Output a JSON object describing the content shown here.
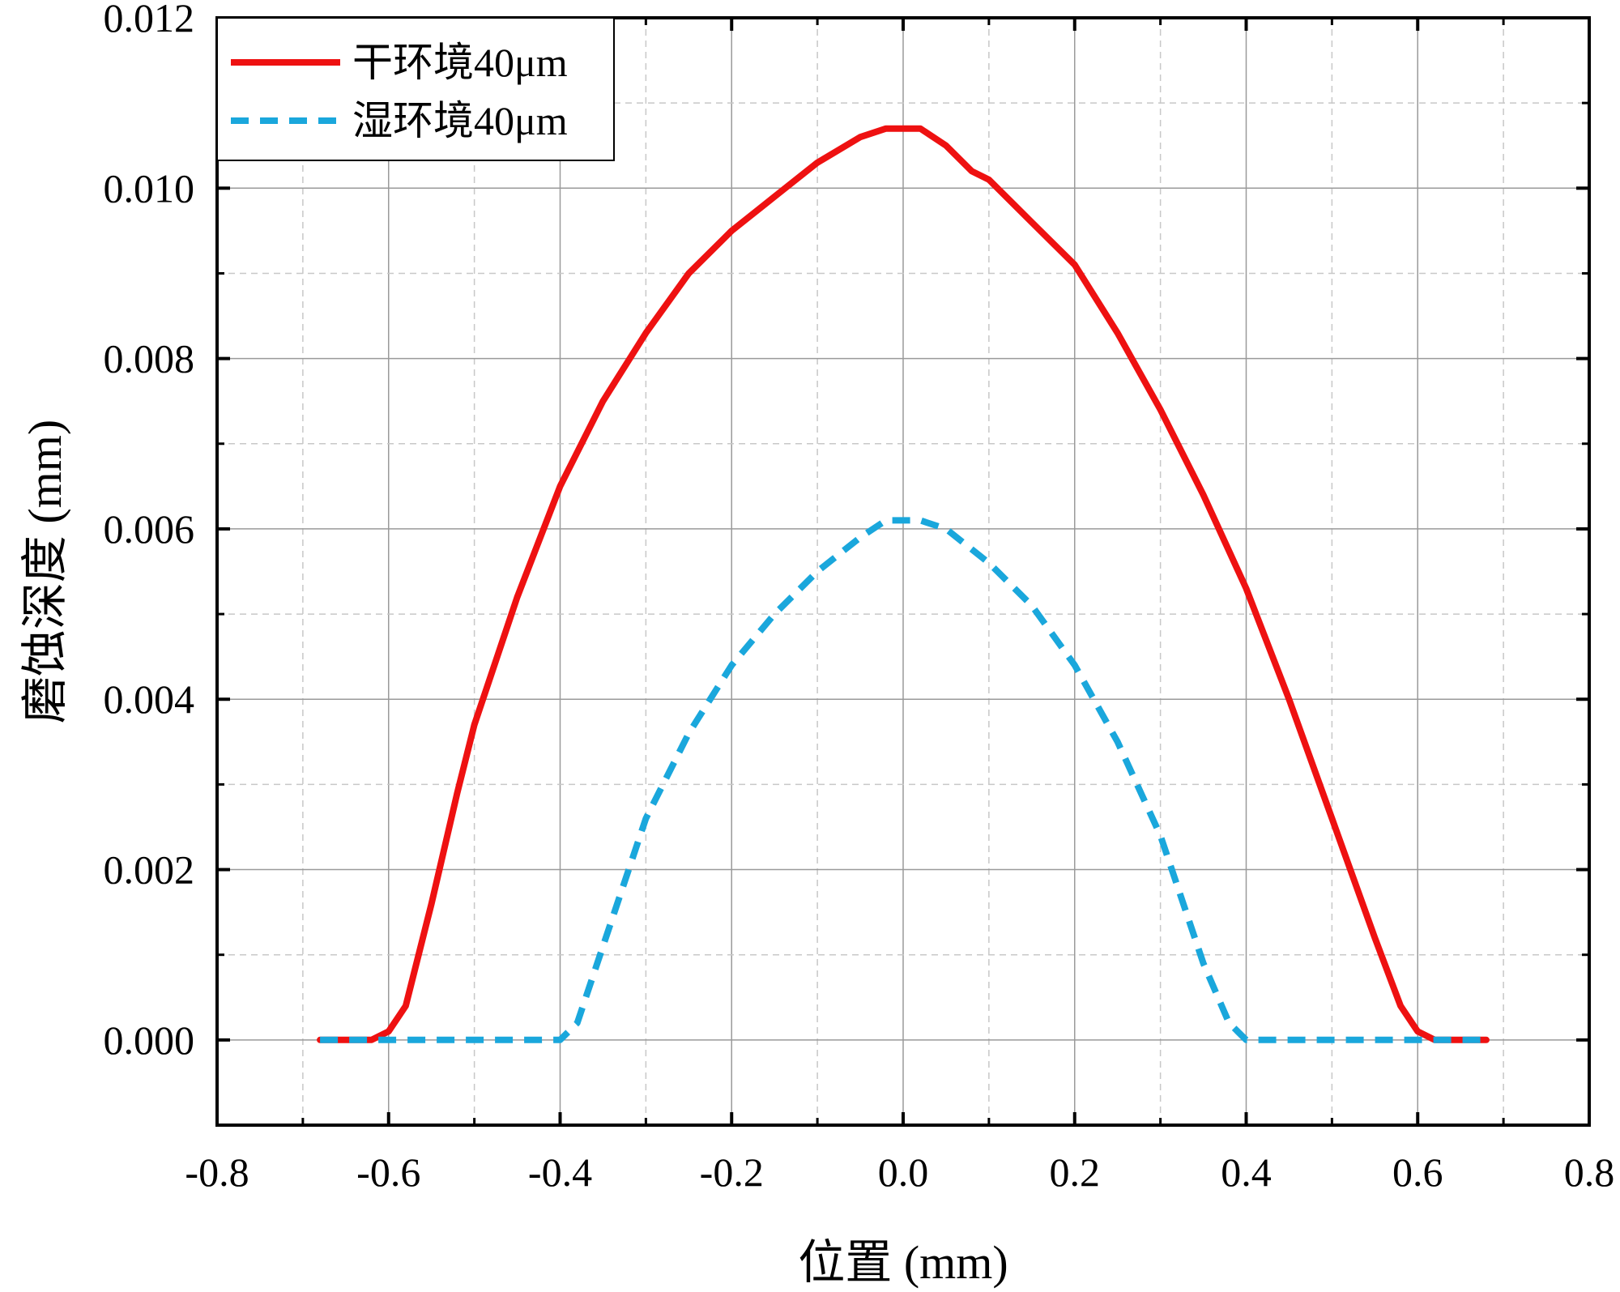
{
  "chart_data": {
    "type": "line",
    "title": "",
    "xlabel": "位置 (mm)",
    "ylabel": "磨蚀深度 (mm)",
    "xlim": [
      -0.8,
      0.8
    ],
    "ylim": [
      -0.001,
      0.012
    ],
    "x_ticks": [
      "-0.8",
      "-0.6",
      "-0.4",
      "-0.2",
      "0.0",
      "0.2",
      "0.4",
      "0.6",
      "0.8"
    ],
    "y_ticks": [
      "0.000",
      "0.002",
      "0.004",
      "0.006",
      "0.008",
      "0.010",
      "0.012"
    ],
    "grid": true,
    "legend_position": "top-left",
    "series": [
      {
        "name": "干环境40μm",
        "color": "#ee1111",
        "style": "solid",
        "x": [
          -0.68,
          -0.65,
          -0.62,
          -0.6,
          -0.58,
          -0.55,
          -0.52,
          -0.5,
          -0.45,
          -0.4,
          -0.35,
          -0.3,
          -0.25,
          -0.2,
          -0.15,
          -0.1,
          -0.05,
          -0.02,
          0.0,
          0.02,
          0.05,
          0.08,
          0.1,
          0.15,
          0.2,
          0.25,
          0.3,
          0.35,
          0.4,
          0.45,
          0.5,
          0.55,
          0.58,
          0.6,
          0.62,
          0.65,
          0.68
        ],
        "y": [
          0.0,
          0.0,
          0.0,
          0.0001,
          0.0004,
          0.0016,
          0.0029,
          0.0037,
          0.0052,
          0.0065,
          0.0075,
          0.0083,
          0.009,
          0.0095,
          0.0099,
          0.0103,
          0.0106,
          0.0107,
          0.0107,
          0.0107,
          0.0105,
          0.0102,
          0.0101,
          0.0096,
          0.0091,
          0.0083,
          0.0074,
          0.0064,
          0.0053,
          0.004,
          0.0026,
          0.0012,
          0.0004,
          0.0001,
          0.0,
          0.0,
          0.0
        ]
      },
      {
        "name": "湿环境40μm",
        "color": "#1aa7dc",
        "style": "dashed",
        "x": [
          -0.68,
          -0.6,
          -0.5,
          -0.4,
          -0.38,
          -0.35,
          -0.32,
          -0.3,
          -0.25,
          -0.2,
          -0.15,
          -0.1,
          -0.05,
          -0.02,
          0.0,
          0.02,
          0.05,
          0.1,
          0.15,
          0.2,
          0.25,
          0.3,
          0.33,
          0.35,
          0.38,
          0.4,
          0.5,
          0.6,
          0.68
        ],
        "y": [
          0.0,
          0.0,
          0.0,
          0.0,
          0.0002,
          0.0011,
          0.002,
          0.0026,
          0.0036,
          0.0044,
          0.005,
          0.0055,
          0.0059,
          0.0061,
          0.0061,
          0.0061,
          0.006,
          0.0056,
          0.0051,
          0.0044,
          0.0035,
          0.0024,
          0.0015,
          0.0009,
          0.0002,
          0.0,
          0.0,
          0.0,
          0.0
        ]
      }
    ]
  }
}
